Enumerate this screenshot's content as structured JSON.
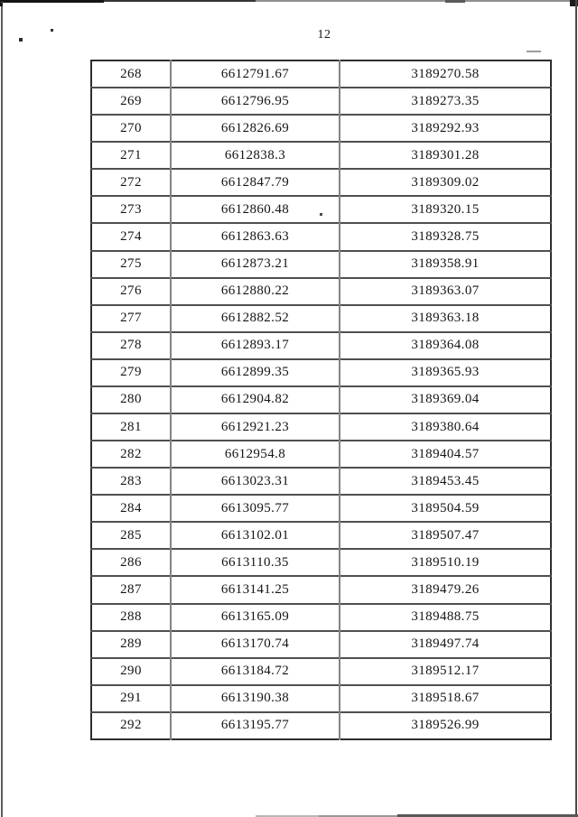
{
  "page": {
    "number": "12"
  },
  "colors": {
    "paper": "#ffffff",
    "ink": "#141414",
    "table_border_outer": "#2e2e2e",
    "table_border_horizontal": "#4f4f4f",
    "table_border_vertical": "#848484"
  },
  "table": {
    "rows": [
      {
        "n": "268",
        "x": "6612791.67",
        "y": "3189270.58"
      },
      {
        "n": "269",
        "x": "6612796.95",
        "y": "3189273.35"
      },
      {
        "n": "270",
        "x": "6612826.69",
        "y": "3189292.93"
      },
      {
        "n": "271",
        "x": "6612838.3",
        "y": "3189301.28"
      },
      {
        "n": "272",
        "x": "6612847.79",
        "y": "3189309.02"
      },
      {
        "n": "273",
        "x": "6612860.48",
        "y": "3189320.15"
      },
      {
        "n": "274",
        "x": "6612863.63",
        "y": "3189328.75"
      },
      {
        "n": "275",
        "x": "6612873.21",
        "y": "3189358.91"
      },
      {
        "n": "276",
        "x": "6612880.22",
        "y": "3189363.07"
      },
      {
        "n": "277",
        "x": "6612882.52",
        "y": "3189363.18"
      },
      {
        "n": "278",
        "x": "6612893.17",
        "y": "3189364.08"
      },
      {
        "n": "279",
        "x": "6612899.35",
        "y": "3189365.93"
      },
      {
        "n": "280",
        "x": "6612904.82",
        "y": "3189369.04"
      },
      {
        "n": "281",
        "x": "6612921.23",
        "y": "3189380.64"
      },
      {
        "n": "282",
        "x": "6612954.8",
        "y": "3189404.57"
      },
      {
        "n": "283",
        "x": "6613023.31",
        "y": "3189453.45"
      },
      {
        "n": "284",
        "x": "6613095.77",
        "y": "3189504.59"
      },
      {
        "n": "285",
        "x": "6613102.01",
        "y": "3189507.47"
      },
      {
        "n": "286",
        "x": "6613110.35",
        "y": "3189510.19"
      },
      {
        "n": "287",
        "x": "6613141.25",
        "y": "3189479.26"
      },
      {
        "n": "288",
        "x": "6613165.09",
        "y": "3189488.75"
      },
      {
        "n": "289",
        "x": "6613170.74",
        "y": "3189497.74"
      },
      {
        "n": "290",
        "x": "6613184.72",
        "y": "3189512.17"
      },
      {
        "n": "291",
        "x": "6613190.38",
        "y": "3189518.67"
      },
      {
        "n": "292",
        "x": "6613195.77",
        "y": "3189526.99"
      }
    ]
  }
}
